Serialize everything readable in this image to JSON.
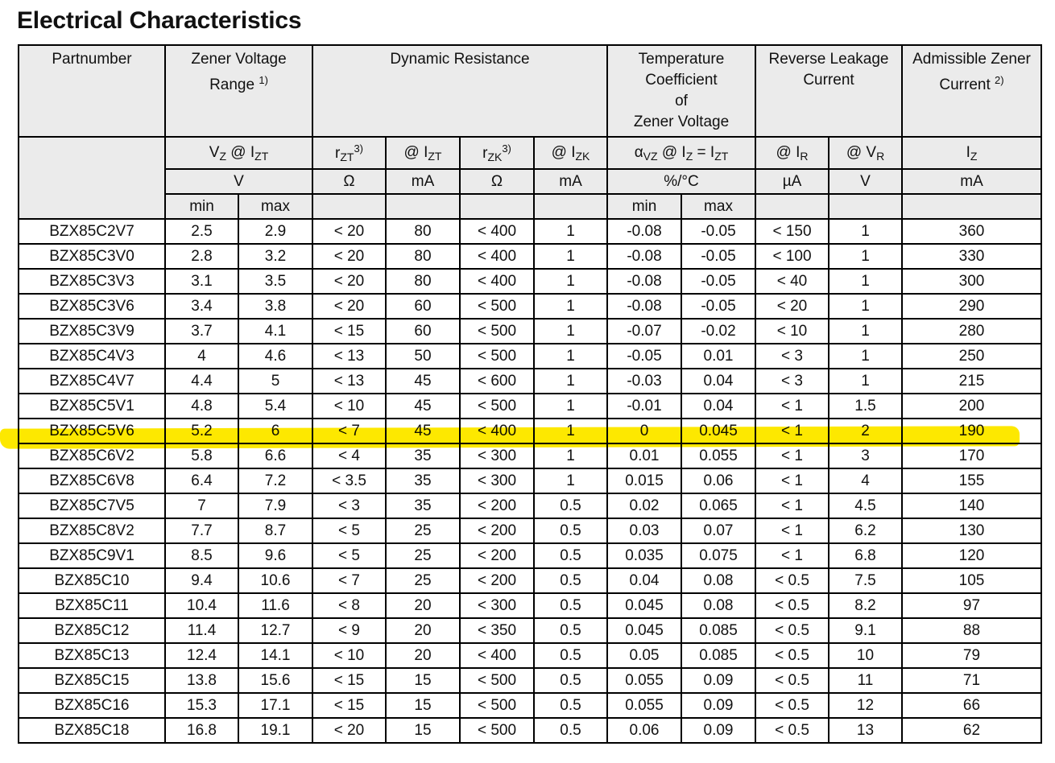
{
  "title": "Electrical Characteristics",
  "highlight_color": "#fde800",
  "highlighted_row": "BZX85C5V6",
  "header": {
    "partnumber": "Partnumber",
    "zener_voltage": "Zener Voltage",
    "zener_voltage_2": "Range",
    "zener_voltage_note": "1)",
    "dynamic_resistance": "Dynamic Resistance",
    "temp_coeff_1": "Temperature",
    "temp_coeff_2": "Coefficient",
    "temp_coeff_3": "of",
    "temp_coeff_4": "Zener Voltage",
    "reverse_leakage_1": "Reverse Leakage",
    "reverse_leakage_2": "Current",
    "admissible_1": "Admissible Zener",
    "admissible_2": "Current",
    "admissible_note": "2)",
    "sym_vz": "V",
    "sym_vz_sub": "Z",
    "sym_at": "@ I",
    "sym_izt_sub": "ZT",
    "sym_rzt": "r",
    "sym_rzt_sub": "ZT",
    "note3": "3)",
    "sym_rzk": "r",
    "sym_rzk_sub": "ZK",
    "sym_izk_sub": "ZK",
    "sym_alpha": "α",
    "sym_alpha_sub": "VZ",
    "sym_iz_eq": "@ I",
    "sym_iz_sub": "Z",
    "sym_eq": " = I",
    "sym_ir_sub": "R",
    "sym_vr": "@  V",
    "sym_vr_sub": "R",
    "sym_iz": "I",
    "units": [
      "V",
      "Ω",
      "mA",
      "Ω",
      "mA",
      "%/°C",
      "µA",
      "V",
      "mA"
    ],
    "min": "min",
    "max": "max"
  },
  "rows": [
    [
      "BZX85C2V7",
      "2.5",
      "2.9",
      "< 20",
      "80",
      "< 400",
      "1",
      "-0.08",
      "-0.05",
      "< 150",
      "1",
      "360"
    ],
    [
      "BZX85C3V0",
      "2.8",
      "3.2",
      "< 20",
      "80",
      "< 400",
      "1",
      "-0.08",
      "-0.05",
      "< 100",
      "1",
      "330"
    ],
    [
      "BZX85C3V3",
      "3.1",
      "3.5",
      "< 20",
      "80",
      "< 400",
      "1",
      "-0.08",
      "-0.05",
      "< 40",
      "1",
      "300"
    ],
    [
      "BZX85C3V6",
      "3.4",
      "3.8",
      "< 20",
      "60",
      "< 500",
      "1",
      "-0.08",
      "-0.05",
      "< 20",
      "1",
      "290"
    ],
    [
      "BZX85C3V9",
      "3.7",
      "4.1",
      "< 15",
      "60",
      "< 500",
      "1",
      "-0.07",
      "-0.02",
      "< 10",
      "1",
      "280"
    ],
    [
      "BZX85C4V3",
      "4",
      "4.6",
      "< 13",
      "50",
      "< 500",
      "1",
      "-0.05",
      "0.01",
      "< 3",
      "1",
      "250"
    ],
    [
      "BZX85C4V7",
      "4.4",
      "5",
      "< 13",
      "45",
      "< 600",
      "1",
      "-0.03",
      "0.04",
      "< 3",
      "1",
      "215"
    ],
    [
      "BZX85C5V1",
      "4.8",
      "5.4",
      "< 10",
      "45",
      "< 500",
      "1",
      "-0.01",
      "0.04",
      "< 1",
      "1.5",
      "200"
    ],
    [
      "BZX85C5V6",
      "5.2",
      "6",
      "< 7",
      "45",
      "< 400",
      "1",
      "0",
      "0.045",
      "< 1",
      "2",
      "190"
    ],
    [
      "BZX85C6V2",
      "5.8",
      "6.6",
      "< 4",
      "35",
      "< 300",
      "1",
      "0.01",
      "0.055",
      "< 1",
      "3",
      "170"
    ],
    [
      "BZX85C6V8",
      "6.4",
      "7.2",
      "< 3.5",
      "35",
      "< 300",
      "1",
      "0.015",
      "0.06",
      "< 1",
      "4",
      "155"
    ],
    [
      "BZX85C7V5",
      "7",
      "7.9",
      "< 3",
      "35",
      "< 200",
      "0.5",
      "0.02",
      "0.065",
      "< 1",
      "4.5",
      "140"
    ],
    [
      "BZX85C8V2",
      "7.7",
      "8.7",
      "< 5",
      "25",
      "< 200",
      "0.5",
      "0.03",
      "0.07",
      "< 1",
      "6.2",
      "130"
    ],
    [
      "BZX85C9V1",
      "8.5",
      "9.6",
      "< 5",
      "25",
      "< 200",
      "0.5",
      "0.035",
      "0.075",
      "< 1",
      "6.8",
      "120"
    ],
    [
      "BZX85C10",
      "9.4",
      "10.6",
      "< 7",
      "25",
      "< 200",
      "0.5",
      "0.04",
      "0.08",
      "< 0.5",
      "7.5",
      "105"
    ],
    [
      "BZX85C11",
      "10.4",
      "11.6",
      "< 8",
      "20",
      "< 300",
      "0.5",
      "0.045",
      "0.08",
      "< 0.5",
      "8.2",
      "97"
    ],
    [
      "BZX85C12",
      "11.4",
      "12.7",
      "< 9",
      "20",
      "< 350",
      "0.5",
      "0.045",
      "0.085",
      "< 0.5",
      "9.1",
      "88"
    ],
    [
      "BZX85C13",
      "12.4",
      "14.1",
      "< 10",
      "20",
      "< 400",
      "0.5",
      "0.05",
      "0.085",
      "< 0.5",
      "10",
      "79"
    ],
    [
      "BZX85C15",
      "13.8",
      "15.6",
      "< 15",
      "15",
      "< 500",
      "0.5",
      "0.055",
      "0.09",
      "< 0.5",
      "11",
      "71"
    ],
    [
      "BZX85C16",
      "15.3",
      "17.1",
      "< 15",
      "15",
      "< 500",
      "0.5",
      "0.055",
      "0.09",
      "< 0.5",
      "12",
      "66"
    ],
    [
      "BZX85C18",
      "16.8",
      "19.1",
      "< 20",
      "15",
      "< 500",
      "0.5",
      "0.06",
      "0.09",
      "< 0.5",
      "13",
      "62"
    ]
  ]
}
